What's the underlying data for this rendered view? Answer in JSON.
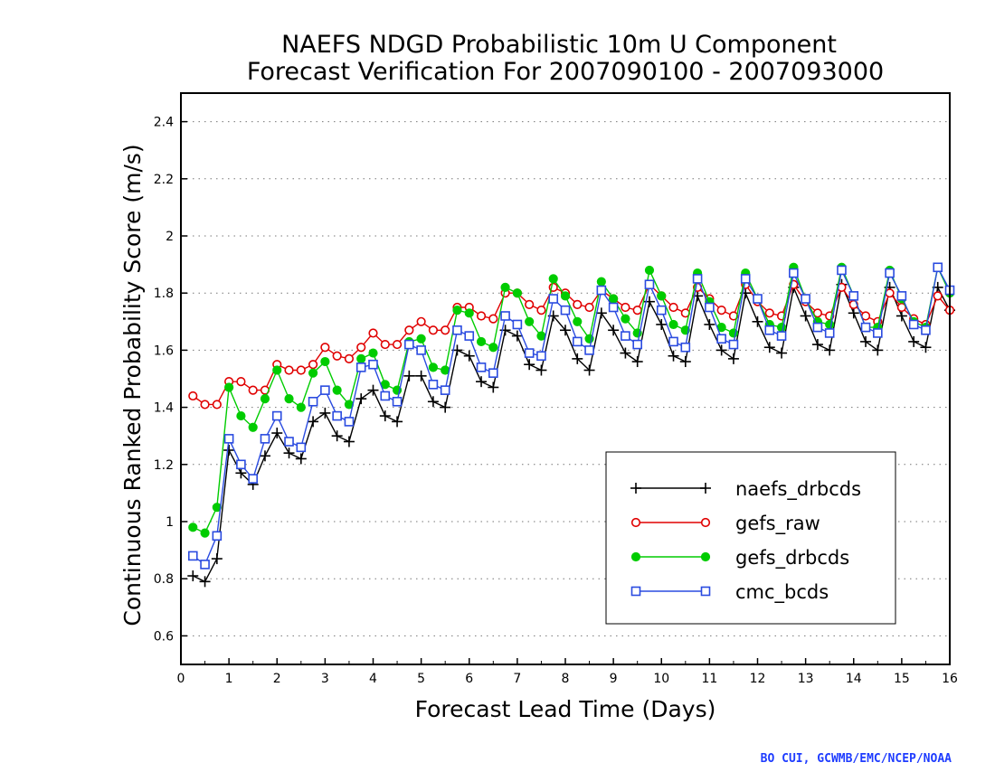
{
  "credit": "BO CUI, GCWMB/EMC/NCEP/NOAA",
  "chart_data": {
    "type": "line",
    "title": [
      "NAEFS NDGD Probabilistic 10m U Component",
      "Forecast Verification For 2007090100 - 2007093000"
    ],
    "xlabel": "Forecast Lead Time (Days)",
    "ylabel": "Continuous Ranked Probability Score (m/s)",
    "xlim": [
      0,
      16
    ],
    "ylim": [
      0.5,
      2.5
    ],
    "xticks": [
      "0",
      "1",
      "2",
      "3",
      "4",
      "5",
      "6",
      "7",
      "8",
      "9",
      "10",
      "11",
      "12",
      "13",
      "14",
      "15",
      "16"
    ],
    "yticks": [
      "0.6",
      "0.8",
      "1",
      "1.2",
      "1.4",
      "1.6",
      "1.8",
      "2",
      "2.2",
      "2.4"
    ],
    "grid": "horizontal-dotted",
    "legend_position": "lower-right",
    "x": [
      0.25,
      0.5,
      0.75,
      1,
      1.25,
      1.5,
      1.75,
      2,
      2.25,
      2.5,
      2.75,
      3,
      3.25,
      3.5,
      3.75,
      4,
      4.25,
      4.5,
      4.75,
      5,
      5.25,
      5.5,
      5.75,
      6,
      6.25,
      6.5,
      6.75,
      7,
      7.25,
      7.5,
      7.75,
      8,
      8.25,
      8.5,
      8.75,
      9,
      9.25,
      9.5,
      9.75,
      10,
      10.25,
      10.5,
      10.75,
      11,
      11.25,
      11.5,
      11.75,
      12,
      12.25,
      12.5,
      12.75,
      13,
      13.25,
      13.5,
      13.75,
      14,
      14.25,
      14.5,
      14.75,
      15,
      15.25,
      15.5,
      15.75,
      16
    ],
    "series": [
      {
        "name": "naefs_drbcds",
        "color": "#000000",
        "marker": "plus",
        "values": [
          0.81,
          0.79,
          0.87,
          1.25,
          1.17,
          1.13,
          1.23,
          1.31,
          1.24,
          1.22,
          1.35,
          1.38,
          1.3,
          1.28,
          1.43,
          1.46,
          1.37,
          1.35,
          1.51,
          1.51,
          1.42,
          1.4,
          1.6,
          1.58,
          1.49,
          1.47,
          1.67,
          1.65,
          1.55,
          1.53,
          1.72,
          1.67,
          1.57,
          1.53,
          1.73,
          1.67,
          1.59,
          1.56,
          1.77,
          1.69,
          1.58,
          1.56,
          1.79,
          1.69,
          1.6,
          1.57,
          1.8,
          1.7,
          1.61,
          1.59,
          1.82,
          1.72,
          1.62,
          1.6,
          1.83,
          1.73,
          1.63,
          1.6,
          1.82,
          1.72,
          1.63,
          1.61,
          1.82,
          1.74
        ]
      },
      {
        "name": "gefs_raw",
        "color": "#e00000",
        "marker": "open-circle",
        "values": [
          1.44,
          1.41,
          1.41,
          1.49,
          1.49,
          1.46,
          1.46,
          1.55,
          1.53,
          1.53,
          1.55,
          1.61,
          1.58,
          1.57,
          1.61,
          1.66,
          1.62,
          1.62,
          1.67,
          1.7,
          1.67,
          1.67,
          1.75,
          1.75,
          1.72,
          1.71,
          1.8,
          1.8,
          1.76,
          1.74,
          1.82,
          1.8,
          1.76,
          1.75,
          1.81,
          1.78,
          1.75,
          1.74,
          1.83,
          1.79,
          1.75,
          1.73,
          1.82,
          1.78,
          1.74,
          1.72,
          1.83,
          1.77,
          1.73,
          1.72,
          1.83,
          1.77,
          1.73,
          1.72,
          1.82,
          1.76,
          1.72,
          1.7,
          1.8,
          1.75,
          1.71,
          1.69,
          1.79,
          1.74
        ]
      },
      {
        "name": "gefs_drbcds",
        "color": "#00cc00",
        "marker": "filled-circle",
        "values": [
          0.98,
          0.96,
          1.05,
          1.47,
          1.37,
          1.33,
          1.43,
          1.53,
          1.43,
          1.4,
          1.52,
          1.56,
          1.46,
          1.41,
          1.57,
          1.59,
          1.48,
          1.46,
          1.63,
          1.64,
          1.54,
          1.53,
          1.74,
          1.73,
          1.63,
          1.61,
          1.82,
          1.8,
          1.7,
          1.65,
          1.85,
          1.79,
          1.7,
          1.64,
          1.84,
          1.78,
          1.71,
          1.66,
          1.88,
          1.79,
          1.69,
          1.67,
          1.87,
          1.77,
          1.68,
          1.66,
          1.87,
          1.78,
          1.69,
          1.68,
          1.89,
          1.78,
          1.7,
          1.69,
          1.89,
          1.79,
          1.68,
          1.68,
          1.88,
          1.78,
          1.7,
          1.68,
          1.89,
          1.8
        ]
      },
      {
        "name": "cmc_bcds",
        "color": "#2a4be0",
        "marker": "open-square",
        "values": [
          0.88,
          0.85,
          0.95,
          1.29,
          1.2,
          1.15,
          1.29,
          1.37,
          1.28,
          1.26,
          1.42,
          1.46,
          1.37,
          1.35,
          1.54,
          1.55,
          1.44,
          1.42,
          1.62,
          1.6,
          1.48,
          1.46,
          1.67,
          1.65,
          1.54,
          1.52,
          1.72,
          1.69,
          1.59,
          1.58,
          1.78,
          1.74,
          1.63,
          1.6,
          1.81,
          1.75,
          1.65,
          1.62,
          1.83,
          1.74,
          1.63,
          1.61,
          1.85,
          1.75,
          1.64,
          1.62,
          1.85,
          1.78,
          1.67,
          1.65,
          1.87,
          1.78,
          1.68,
          1.66,
          1.88,
          1.79,
          1.68,
          1.66,
          1.87,
          1.79,
          1.69,
          1.67,
          1.89,
          1.81
        ]
      }
    ]
  }
}
